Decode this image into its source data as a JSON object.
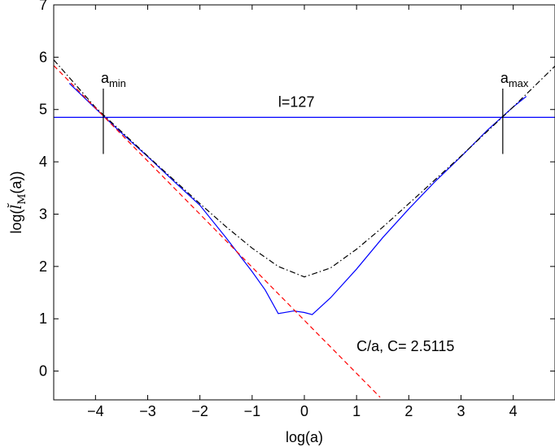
{
  "chart_data": {
    "type": "line",
    "xlabel": "log(a)",
    "ylabel": "log(l̆M(a))",
    "xlim": [
      -4.8,
      4.8
    ],
    "ylim": [
      -0.55,
      7.0
    ],
    "x_ticks": [
      -4,
      -3,
      -2,
      -1,
      0,
      1,
      2,
      3,
      4
    ],
    "y_ticks": [
      0,
      1,
      2,
      3,
      4,
      5,
      6,
      7
    ],
    "x_tick_labels": [
      "−4",
      "−3",
      "−2",
      "−1",
      "0",
      "1",
      "2",
      "3",
      "4"
    ],
    "y_tick_labels": [
      "0",
      "1",
      "2",
      "3",
      "4",
      "5",
      "6",
      "7"
    ],
    "series": [
      {
        "style": "solid",
        "color": "#0000ff",
        "points": [
          [
            -4.5,
            5.5
          ],
          [
            -4.0,
            5.02
          ],
          [
            -3.5,
            4.55
          ],
          [
            -3.0,
            4.1
          ],
          [
            -2.5,
            3.63
          ],
          [
            -2.0,
            3.17
          ],
          [
            -1.5,
            2.55
          ],
          [
            -1.0,
            1.9
          ],
          [
            -0.75,
            1.55
          ],
          [
            -0.5,
            1.1
          ],
          [
            -0.2,
            1.15
          ],
          [
            0.0,
            1.12
          ],
          [
            0.15,
            1.08
          ],
          [
            0.5,
            1.4
          ],
          [
            1.0,
            1.95
          ],
          [
            1.5,
            2.55
          ],
          [
            2.0,
            3.1
          ],
          [
            2.5,
            3.62
          ],
          [
            3.0,
            4.1
          ],
          [
            3.5,
            4.6
          ],
          [
            4.0,
            5.05
          ],
          [
            4.25,
            5.25
          ]
        ]
      },
      {
        "style": "dash-dot",
        "color": "#000000",
        "points": [
          [
            -4.8,
            5.95
          ],
          [
            -4.0,
            5.04
          ],
          [
            -3.0,
            4.11
          ],
          [
            -2.0,
            3.2
          ],
          [
            -1.5,
            2.76
          ],
          [
            -1.0,
            2.35
          ],
          [
            -0.5,
            2.0
          ],
          [
            0.0,
            1.8
          ],
          [
            0.5,
            1.97
          ],
          [
            1.0,
            2.33
          ],
          [
            1.5,
            2.75
          ],
          [
            2.0,
            3.2
          ],
          [
            3.0,
            4.11
          ],
          [
            4.0,
            5.05
          ],
          [
            4.8,
            5.83
          ]
        ]
      },
      {
        "style": "dashed",
        "color": "#ff0000",
        "label": "C/a, C= 2.5115",
        "points": [
          [
            -4.8,
            5.84
          ],
          [
            1.45,
            -0.5
          ]
        ]
      }
    ],
    "hline": {
      "y": 4.85,
      "color": "#0000ff",
      "label": "l=127"
    },
    "vmarkers": [
      {
        "x": -3.85,
        "y_from": 4.15,
        "y_to": 5.4,
        "label": "a",
        "sub": "min"
      },
      {
        "x": 3.8,
        "y_from": 4.15,
        "y_to": 5.4,
        "label": "a",
        "sub": "max"
      }
    ],
    "annotations": {
      "l_label": "l=127",
      "c_label": "C/a, C= 2.5115"
    },
    "grid": false
  }
}
